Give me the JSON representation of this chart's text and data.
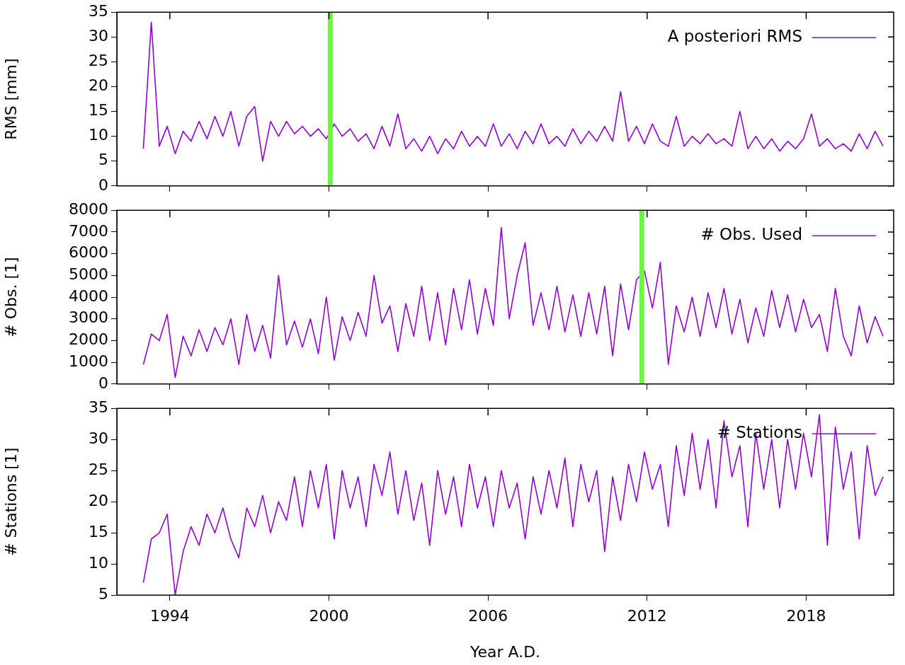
{
  "chart_data": [
    {
      "type": "line",
      "ylabel": "RMS [mm]",
      "legend": "top right",
      "marker": "none",
      "tick_labels": "y",
      "x": [
        1993.0,
        1993.3,
        1993.6,
        1993.9,
        1994.2,
        1994.5,
        1994.8,
        1995.1,
        1995.4,
        1995.7,
        1996.0,
        1996.3,
        1996.6,
        1996.9,
        1997.2,
        1997.5,
        1997.8,
        1998.1,
        1998.4,
        1998.7,
        1999.0,
        1999.3,
        1999.6,
        1999.9,
        2000.2,
        2000.5,
        2000.8,
        2001.1,
        2001.4,
        2001.7,
        2002.0,
        2002.3,
        2002.6,
        2002.9,
        2003.2,
        2003.5,
        2003.8,
        2004.1,
        2004.4,
        2004.7,
        2005.0,
        2005.3,
        2005.6,
        2005.9,
        2006.2,
        2006.5,
        2006.8,
        2007.1,
        2007.4,
        2007.7,
        2008.0,
        2008.3,
        2008.6,
        2008.9,
        2009.2,
        2009.5,
        2009.8,
        2010.1,
        2010.4,
        2010.7,
        2011.0,
        2011.3,
        2011.6,
        2011.9,
        2012.2,
        2012.5,
        2012.8,
        2013.1,
        2013.4,
        2013.7,
        2014.0,
        2014.3,
        2014.6,
        2014.9,
        2015.2,
        2015.5,
        2015.8,
        2016.1,
        2016.4,
        2016.7,
        2017.0,
        2017.3,
        2017.6,
        2017.9,
        2018.2,
        2018.5,
        2018.8,
        2019.1,
        2019.4,
        2019.7,
        2020.0,
        2020.3,
        2020.6,
        2020.9
      ],
      "series": [
        {
          "name": "A posteriori RMS",
          "color": "#9400d3",
          "values": [
            7.5,
            33,
            8,
            12,
            6.5,
            11,
            9,
            13,
            9.5,
            14,
            10,
            15,
            8,
            14,
            16,
            5,
            13,
            10,
            13,
            10.5,
            12,
            10,
            11.5,
            9.5,
            12.5,
            10,
            11.5,
            9,
            10.5,
            7.5,
            12,
            8,
            14.5,
            7.5,
            9.5,
            7,
            10,
            6.5,
            9.5,
            7.5,
            11,
            8,
            10,
            8,
            12.5,
            8,
            10.5,
            7.5,
            11,
            8.5,
            12.5,
            8.5,
            10,
            8,
            11.5,
            8.5,
            11,
            9,
            12,
            9,
            19,
            9,
            12,
            8.5,
            12.5,
            9,
            8,
            14,
            8,
            10,
            8.5,
            10.5,
            8.5,
            9.5,
            8,
            15,
            7.5,
            10,
            7.5,
            9.5,
            7,
            9,
            7.5,
            9.5,
            14.5,
            8,
            9.5,
            7.5,
            8.5,
            7,
            10.5,
            7.5,
            11,
            8
          ]
        }
      ],
      "xlim": [
        1992,
        2021.3
      ],
      "xticks": [
        1994,
        2000,
        2006,
        2012,
        2018
      ],
      "ylim": [
        0,
        35
      ],
      "yticks": [
        0,
        5,
        10,
        15,
        20,
        25,
        30,
        35
      ],
      "ref_lines": [
        {
          "axis": "x",
          "value": 2000.05,
          "color": "#66ff33"
        }
      ]
    },
    {
      "type": "line",
      "ylabel": "# Obs. [1]",
      "legend": "top right",
      "marker": "none",
      "tick_labels": "y",
      "x": [
        1993.0,
        1993.3,
        1993.6,
        1993.9,
        1994.2,
        1994.5,
        1994.8,
        1995.1,
        1995.4,
        1995.7,
        1996.0,
        1996.3,
        1996.6,
        1996.9,
        1997.2,
        1997.5,
        1997.8,
        1998.1,
        1998.4,
        1998.7,
        1999.0,
        1999.3,
        1999.6,
        1999.9,
        2000.2,
        2000.5,
        2000.8,
        2001.1,
        2001.4,
        2001.7,
        2002.0,
        2002.3,
        2002.6,
        2002.9,
        2003.2,
        2003.5,
        2003.8,
        2004.1,
        2004.4,
        2004.7,
        2005.0,
        2005.3,
        2005.6,
        2005.9,
        2006.2,
        2006.5,
        2006.8,
        2007.1,
        2007.4,
        2007.7,
        2008.0,
        2008.3,
        2008.6,
        2008.9,
        2009.2,
        2009.5,
        2009.8,
        2010.1,
        2010.4,
        2010.7,
        2011.0,
        2011.3,
        2011.6,
        2011.9,
        2012.2,
        2012.5,
        2012.8,
        2013.1,
        2013.4,
        2013.7,
        2014.0,
        2014.3,
        2014.6,
        2014.9,
        2015.2,
        2015.5,
        2015.8,
        2016.1,
        2016.4,
        2016.7,
        2017.0,
        2017.3,
        2017.6,
        2017.9,
        2018.2,
        2018.5,
        2018.8,
        2019.1,
        2019.4,
        2019.7,
        2020.0,
        2020.3,
        2020.6,
        2020.9
      ],
      "series": [
        {
          "name": "# Obs. Used",
          "color": "#9400d3",
          "values": [
            900,
            2300,
            2000,
            3200,
            300,
            2200,
            1300,
            2500,
            1500,
            2600,
            1800,
            3000,
            900,
            3200,
            1500,
            2700,
            1200,
            5000,
            1800,
            2900,
            1700,
            3000,
            1400,
            4000,
            1100,
            3100,
            2000,
            3300,
            2200,
            5000,
            2800,
            3600,
            1500,
            3700,
            2200,
            4500,
            2000,
            4200,
            1800,
            4400,
            2500,
            4800,
            2300,
            4400,
            2700,
            7200,
            3000,
            5000,
            6500,
            2700,
            4200,
            2500,
            4500,
            2400,
            4100,
            2200,
            4200,
            2300,
            4500,
            1300,
            4600,
            2500,
            4800,
            5200,
            3500,
            5600,
            900,
            3600,
            2400,
            4000,
            2200,
            4200,
            2600,
            4400,
            2300,
            3900,
            1900,
            3500,
            2200,
            4300,
            2600,
            4100,
            2400,
            3900,
            2600,
            3200,
            1500,
            4400,
            2200,
            1300,
            3600,
            1900,
            3100,
            2200
          ]
        }
      ],
      "xlim": [
        1992,
        2021.3
      ],
      "xticks": [
        1994,
        2000,
        2006,
        2012,
        2018
      ],
      "ylim": [
        0,
        8000
      ],
      "yticks": [
        0,
        1000,
        2000,
        3000,
        4000,
        5000,
        6000,
        7000,
        8000
      ],
      "ref_lines": [
        {
          "axis": "x",
          "value": 2011.8,
          "color": "#66ff33"
        }
      ]
    },
    {
      "type": "line",
      "ylabel": "# Stations [1]",
      "xlabel": "Year A.D.",
      "legend": "top right",
      "marker": "none",
      "x": [
        1993.0,
        1993.3,
        1993.6,
        1993.9,
        1994.2,
        1994.5,
        1994.8,
        1995.1,
        1995.4,
        1995.7,
        1996.0,
        1996.3,
        1996.6,
        1996.9,
        1997.2,
        1997.5,
        1997.8,
        1998.1,
        1998.4,
        1998.7,
        1999.0,
        1999.3,
        1999.6,
        1999.9,
        2000.2,
        2000.5,
        2000.8,
        2001.1,
        2001.4,
        2001.7,
        2002.0,
        2002.3,
        2002.6,
        2002.9,
        2003.2,
        2003.5,
        2003.8,
        2004.1,
        2004.4,
        2004.7,
        2005.0,
        2005.3,
        2005.6,
        2005.9,
        2006.2,
        2006.5,
        2006.8,
        2007.1,
        2007.4,
        2007.7,
        2008.0,
        2008.3,
        2008.6,
        2008.9,
        2009.2,
        2009.5,
        2009.8,
        2010.1,
        2010.4,
        2010.7,
        2011.0,
        2011.3,
        2011.6,
        2011.9,
        2012.2,
        2012.5,
        2012.8,
        2013.1,
        2013.4,
        2013.7,
        2014.0,
        2014.3,
        2014.6,
        2014.9,
        2015.2,
        2015.5,
        2015.8,
        2016.1,
        2016.4,
        2016.7,
        2017.0,
        2017.3,
        2017.6,
        2017.9,
        2018.2,
        2018.5,
        2018.8,
        2019.1,
        2019.4,
        2019.7,
        2020.0,
        2020.3,
        2020.6,
        2020.9
      ],
      "series": [
        {
          "name": "# Stations",
          "color": "#9400d3",
          "values": [
            7,
            14,
            15,
            18,
            5,
            12,
            16,
            13,
            18,
            15,
            19,
            14,
            11,
            19,
            16,
            21,
            15,
            20,
            17,
            24,
            16,
            25,
            19,
            26,
            14,
            25,
            19,
            24,
            16,
            26,
            21,
            28,
            18,
            25,
            17,
            23,
            13,
            25,
            18,
            24,
            16,
            26,
            19,
            24,
            16,
            25,
            19,
            23,
            14,
            24,
            18,
            25,
            19,
            27,
            16,
            26,
            20,
            25,
            12,
            24,
            17,
            26,
            20,
            28,
            22,
            26,
            16,
            29,
            21,
            31,
            22,
            30,
            19,
            33,
            24,
            29,
            16,
            31,
            22,
            30,
            19,
            30,
            22,
            31,
            24,
            34,
            13,
            32,
            22,
            28,
            14,
            29,
            21,
            24
          ]
        }
      ],
      "xlim": [
        1992,
        2021.3
      ],
      "xticks": [
        1994,
        2000,
        2006,
        2012,
        2018
      ],
      "ylim": [
        5,
        35
      ],
      "yticks": [
        5,
        10,
        15,
        20,
        25,
        30,
        35
      ]
    }
  ]
}
